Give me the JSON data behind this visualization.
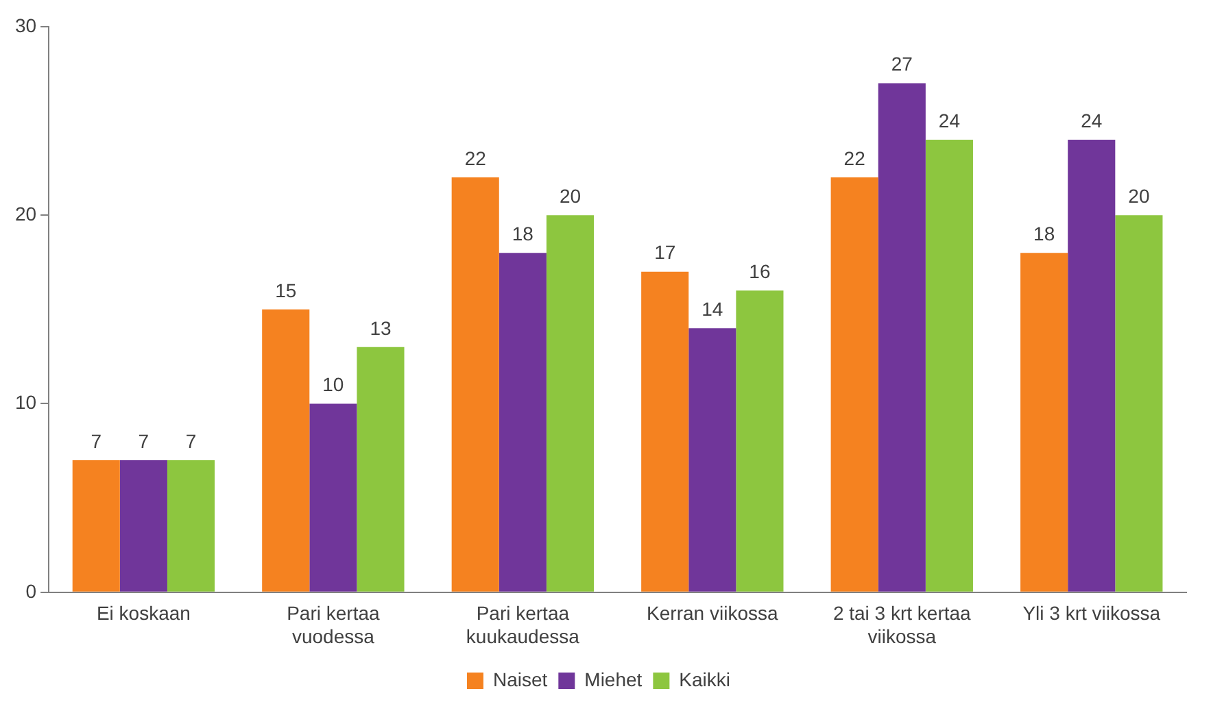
{
  "chart_data": {
    "type": "bar",
    "categories": [
      "Ei koskaan",
      "Pari kertaa vuodessa",
      "Pari kertaa kuukaudessa",
      "Kerran viikossa",
      "2 tai 3 krt kertaa viikossa",
      "Yli 3 krt viikossa"
    ],
    "series": [
      {
        "name": "Naiset",
        "color": "#f58220",
        "values": [
          7,
          15,
          22,
          17,
          22,
          18
        ]
      },
      {
        "name": "Miehet",
        "color": "#70369a",
        "values": [
          7,
          10,
          18,
          14,
          27,
          24
        ]
      },
      {
        "name": "Kaikki",
        "color": "#8dc63f",
        "values": [
          7,
          13,
          20,
          16,
          24,
          20
        ]
      }
    ],
    "ylim": [
      0,
      30
    ],
    "yticks": [
      0,
      10,
      20,
      30
    ],
    "grid": false,
    "legend": "bottom",
    "data_labels": true
  }
}
